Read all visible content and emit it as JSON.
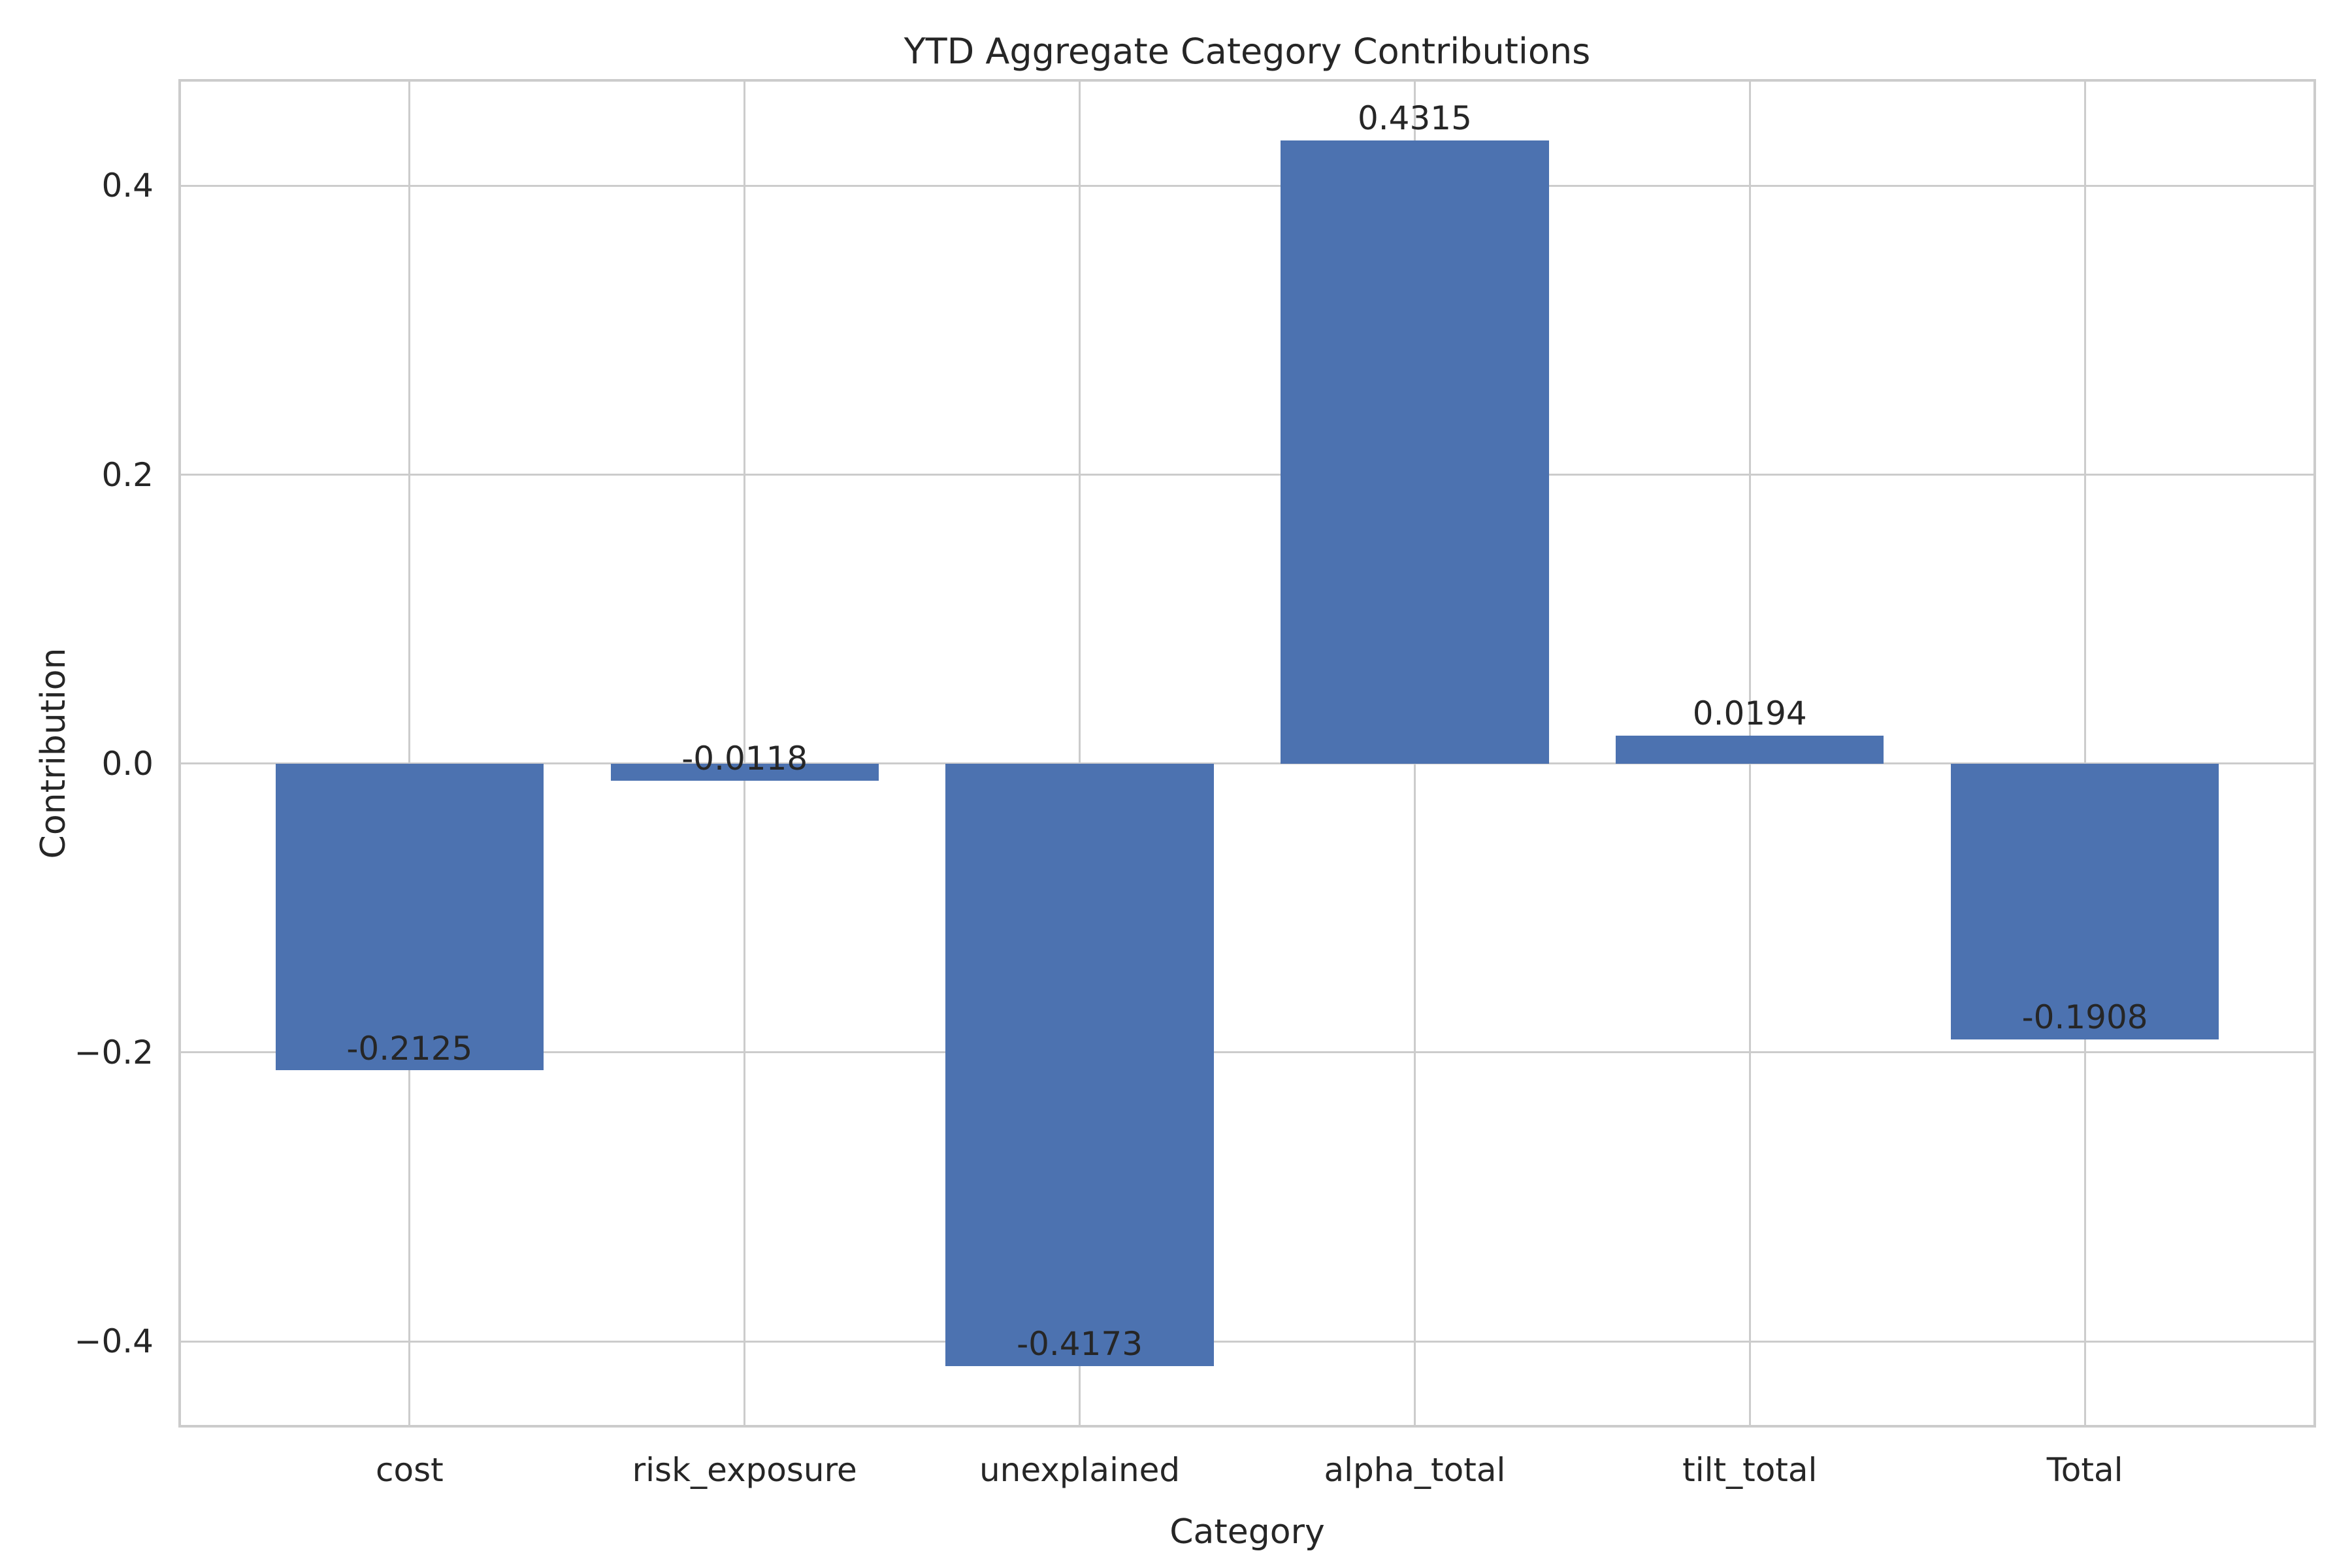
{
  "chart_data": {
    "type": "bar",
    "title": "YTD Aggregate Category Contributions",
    "xlabel": "Category",
    "ylabel": "Contribution",
    "categories": [
      "cost",
      "risk_exposure",
      "unexplained",
      "alpha_total",
      "tilt_total",
      "Total"
    ],
    "values": [
      -0.2125,
      -0.0118,
      -0.4173,
      0.4315,
      0.0194,
      -0.1908
    ],
    "bar_labels": [
      "-0.2125",
      "-0.0118",
      "-0.4173",
      "0.4315",
      "0.0194",
      "-0.1908"
    ],
    "yticks": [
      0.4,
      0.2,
      0.0,
      -0.2,
      -0.4
    ],
    "ytick_labels": [
      "0.4",
      "0.2",
      "0.0",
      "−0.2",
      "−0.4"
    ],
    "ylim": [
      -0.4597,
      0.4739
    ],
    "xlim": [
      -0.69,
      5.69
    ],
    "bar_width": 0.8,
    "grid": true,
    "legend": "none",
    "colors": {
      "bar": "#4C72B0",
      "grid": "#cccccc",
      "text": "#262626",
      "background": "#ffffff"
    }
  }
}
